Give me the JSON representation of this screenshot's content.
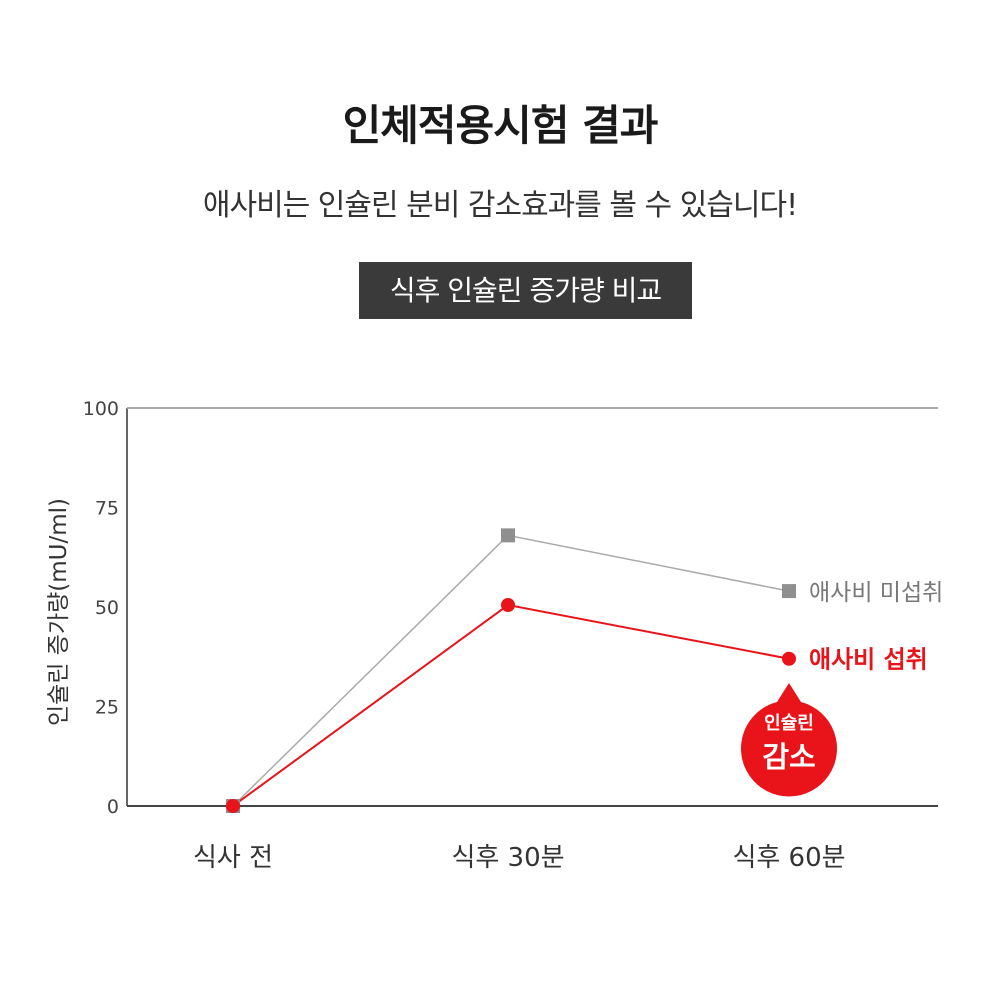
{
  "header": {
    "title": "인체적용시험 결과",
    "subtitle": "애사비는 인슐린 분비 감소효과를 볼 수 있습니다!",
    "label": "식후 인슐린 증가량 비교"
  },
  "colors": {
    "gray_series": "#aaaaaa",
    "gray_marker": "#8f8f8f",
    "red_series": "#e8141a",
    "label_box": "#3a3a3a"
  },
  "chart_data": {
    "type": "line",
    "title": "",
    "xlabel": "",
    "ylabel": "인슐린 증가량(mU/ml)",
    "ylim": [
      0,
      100
    ],
    "yticks": [
      "0",
      "25",
      "50",
      "75",
      "100"
    ],
    "categories": [
      "식사 전",
      "식후 30분",
      "식후 60분"
    ],
    "grid": false,
    "series": [
      {
        "name": "애사비 미섭취",
        "marker": "square",
        "values": [
          0,
          68,
          54
        ]
      },
      {
        "name": "애사비 섭취",
        "marker": "circle",
        "values": [
          0,
          50.5,
          37
        ]
      }
    ],
    "annotation": {
      "line1": "인슐린",
      "line2": "감소"
    }
  }
}
